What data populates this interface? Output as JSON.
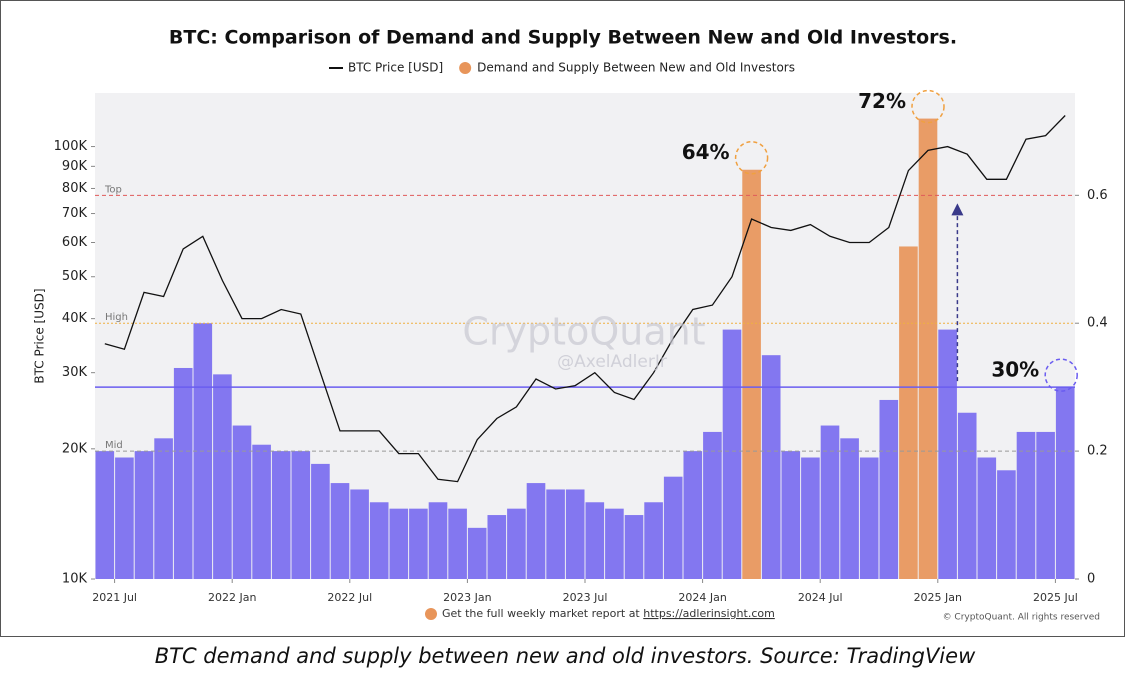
{
  "chart_data": {
    "type": "bar-line",
    "title": "BTC: Comparison of Demand and Supply Between New and Old Investors.",
    "y_label": "BTC Price [USD]",
    "x": [
      "2021-06",
      "2021-07",
      "2021-08",
      "2021-09",
      "2021-10",
      "2021-11",
      "2021-12",
      "2022-01",
      "2022-02",
      "2022-03",
      "2022-04",
      "2022-05",
      "2022-06",
      "2022-07",
      "2022-08",
      "2022-09",
      "2022-10",
      "2022-11",
      "2022-12",
      "2023-01",
      "2023-02",
      "2023-03",
      "2023-04",
      "2023-05",
      "2023-06",
      "2023-07",
      "2023-08",
      "2023-09",
      "2023-10",
      "2023-11",
      "2023-12",
      "2024-01",
      "2024-02",
      "2024-03",
      "2024-04",
      "2024-05",
      "2024-06",
      "2024-07",
      "2024-08",
      "2024-09",
      "2024-10",
      "2024-11",
      "2024-12",
      "2025-01",
      "2025-02",
      "2025-03",
      "2025-04",
      "2025-05",
      "2025-06",
      "2025-07"
    ],
    "series": [
      {
        "name": "BTC Price [USD]",
        "type": "line",
        "axis": "y",
        "color": "#111111",
        "values": [
          35000,
          34000,
          46000,
          45000,
          58000,
          62000,
          49000,
          40000,
          40000,
          42000,
          41000,
          30000,
          22000,
          22000,
          22000,
          19500,
          19500,
          17000,
          16800,
          21000,
          23500,
          25000,
          29000,
          27500,
          28000,
          30000,
          27000,
          26000,
          30000,
          36000,
          42000,
          43000,
          50000,
          68000,
          65000,
          64000,
          66000,
          62000,
          60000,
          60000,
          65000,
          88000,
          98000,
          100000,
          96000,
          84000,
          84000,
          104000,
          106000,
          118000
        ]
      },
      {
        "name": "Demand and Supply Between New and Old Investors",
        "type": "bar",
        "axis": "y2",
        "color": "#e8955a",
        "values": [
          0.2,
          0.19,
          0.2,
          0.22,
          0.33,
          0.4,
          0.32,
          0.24,
          0.21,
          0.2,
          0.2,
          0.18,
          0.15,
          0.14,
          0.12,
          0.11,
          0.11,
          0.12,
          0.11,
          0.08,
          0.1,
          0.11,
          0.15,
          0.14,
          0.14,
          0.12,
          0.11,
          0.1,
          0.12,
          0.16,
          0.2,
          0.23,
          0.39,
          0.64,
          0.35,
          0.2,
          0.19,
          0.24,
          0.22,
          0.19,
          0.28,
          0.52,
          0.72,
          0.39,
          0.26,
          0.19,
          0.17,
          0.23,
          0.23,
          0.3
        ],
        "colors": [
          "#7a6cf0",
          "#7a6cf0",
          "#7a6cf0",
          "#7a6cf0",
          "#7a6cf0",
          "#7a6cf0",
          "#7a6cf0",
          "#7a6cf0",
          "#7a6cf0",
          "#7a6cf0",
          "#7a6cf0",
          "#7a6cf0",
          "#7a6cf0",
          "#7a6cf0",
          "#7a6cf0",
          "#7a6cf0",
          "#7a6cf0",
          "#7a6cf0",
          "#7a6cf0",
          "#7a6cf0",
          "#7a6cf0",
          "#7a6cf0",
          "#7a6cf0",
          "#7a6cf0",
          "#7a6cf0",
          "#7a6cf0",
          "#7a6cf0",
          "#7a6cf0",
          "#7a6cf0",
          "#7a6cf0",
          "#7a6cf0",
          "#7a6cf0",
          "#7a6cf0",
          "#e8955a",
          "#7a6cf0",
          "#7a6cf0",
          "#7a6cf0",
          "#7a6cf0",
          "#7a6cf0",
          "#7a6cf0",
          "#7a6cf0",
          "#e8955a",
          "#e8955a",
          "#7a6cf0",
          "#7a6cf0",
          "#7a6cf0",
          "#7a6cf0",
          "#7a6cf0",
          "#7a6cf0",
          "#7a6cf0"
        ]
      }
    ],
    "xlim": [
      "2021-06",
      "2025-08"
    ],
    "xticks": [
      {
        "value": "2021-07",
        "label": "2021 Jul"
      },
      {
        "value": "2022-01",
        "label": "2022 Jan"
      },
      {
        "value": "2022-07",
        "label": "2022 Jul"
      },
      {
        "value": "2023-01",
        "label": "2023 Jan"
      },
      {
        "value": "2023-07",
        "label": "2023 Jul"
      },
      {
        "value": "2024-01",
        "label": "2024 Jan"
      },
      {
        "value": "2024-07",
        "label": "2024 Jul"
      },
      {
        "value": "2025-01",
        "label": "2025 Jan"
      },
      {
        "value": "2025-07",
        "label": "2025 Jul"
      }
    ],
    "ylim": [
      10000,
      133000
    ],
    "log_y": true,
    "yticks": [
      {
        "value": 10000,
        "label": "10K"
      },
      {
        "value": 20000,
        "label": "20K"
      },
      {
        "value": 30000,
        "label": "30K"
      },
      {
        "value": 40000,
        "label": "40K"
      },
      {
        "value": 50000,
        "label": "50K"
      },
      {
        "value": 60000,
        "label": "60K"
      },
      {
        "value": 70000,
        "label": "70K"
      },
      {
        "value": 80000,
        "label": "80K"
      },
      {
        "value": 90000,
        "label": "90K"
      },
      {
        "value": 100000,
        "label": "100K"
      }
    ],
    "y2lim": [
      0,
      0.76
    ],
    "y2ticks": [
      0,
      0.2,
      0.4,
      0.6
    ],
    "reference_lines": [
      {
        "label": "Top",
        "value": 0.6,
        "color": "#e05a5a",
        "dash": "4 3"
      },
      {
        "label": "High",
        "value": 0.4,
        "color": "#f0b040",
        "dash": "2 2"
      },
      {
        "label": "Mid",
        "value": 0.2,
        "color": "#999999",
        "dash": "4 3"
      }
    ],
    "level_line": {
      "value": 0.3,
      "color": "#6a5cf0"
    },
    "annotations": [
      {
        "text": "64%",
        "x": "2024-03",
        "value": 0.64,
        "color": "#f0a040"
      },
      {
        "text": "72%",
        "x": "2024-12",
        "value": 0.72,
        "color": "#f0a040"
      },
      {
        "text": "30%",
        "x": "2025-07",
        "value": 0.3,
        "color": "#6a5cf0"
      }
    ],
    "arrow": {
      "x": "2025-02",
      "from": 0.3,
      "to": 0.6
    },
    "watermark": "CryptoQuant",
    "watermark_sub": "@AxelAdlerJr",
    "footer": "Get the full weekly market report at",
    "footer_link": "https://adlerinsight.com",
    "copyright": "© CryptoQuant. All rights reserved",
    "caption": "BTC demand and supply between new and old investors. Source: TradingView"
  }
}
